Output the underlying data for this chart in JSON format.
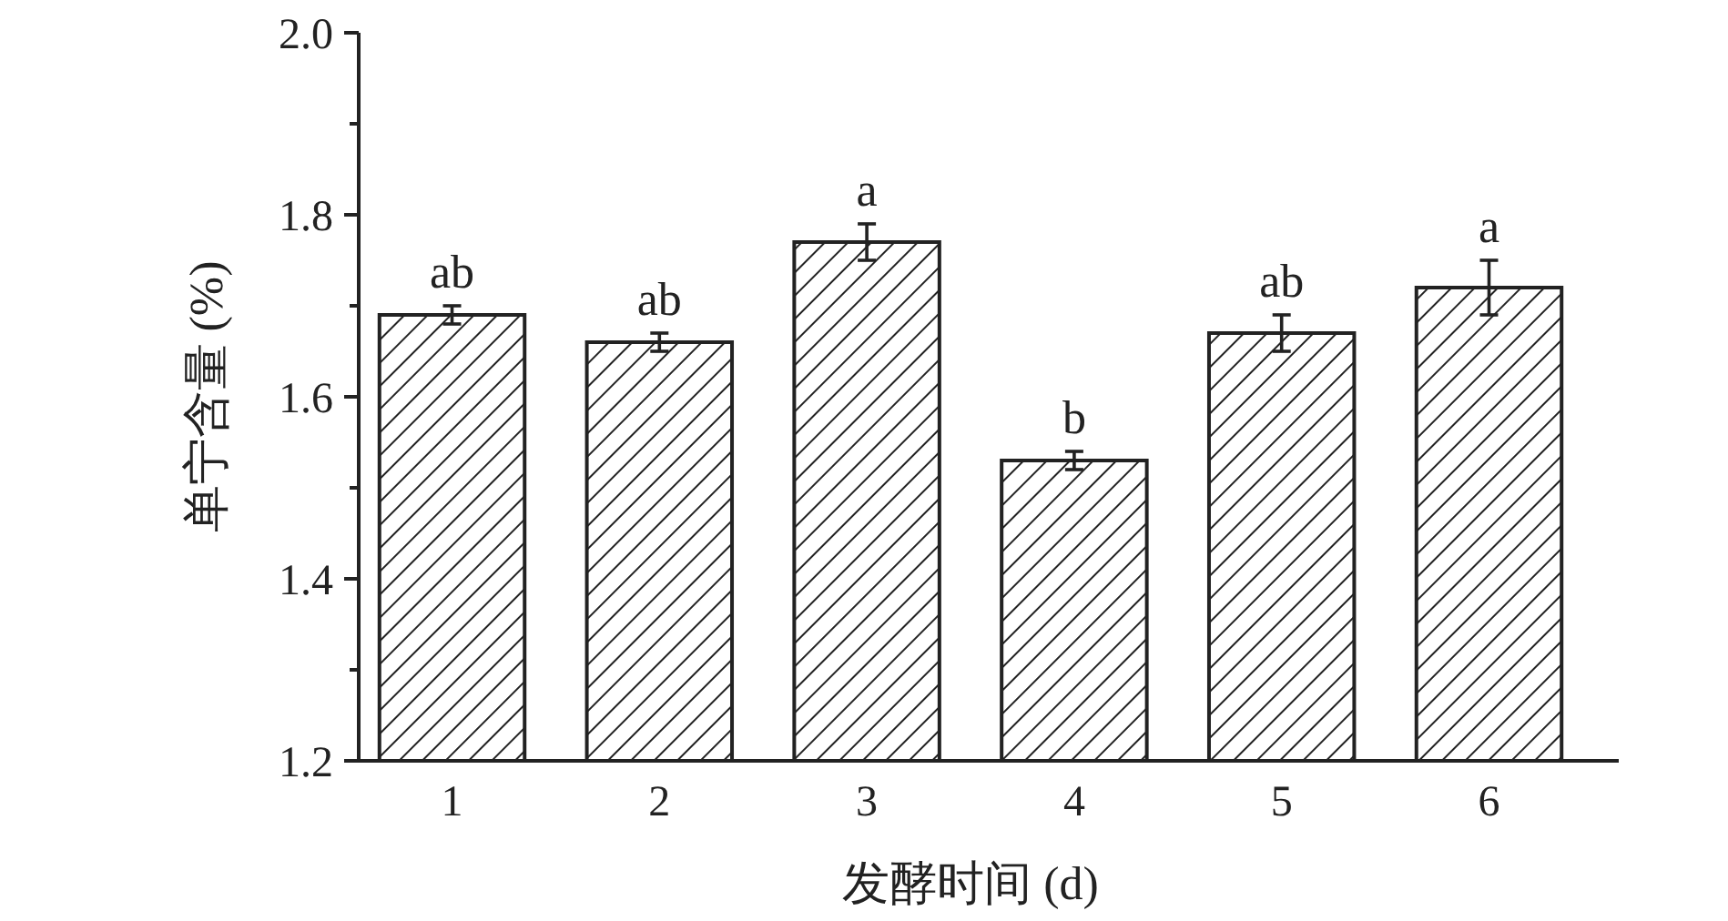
{
  "chart_data": {
    "type": "bar",
    "ylabel": "单宁含量 (%)",
    "xlabel": "发酵时间 (d)",
    "categories": [
      "1",
      "2",
      "3",
      "4",
      "5",
      "6"
    ],
    "values": [
      1.69,
      1.66,
      1.77,
      1.53,
      1.67,
      1.72
    ],
    "errors": [
      0.01,
      0.01,
      0.02,
      0.01,
      0.02,
      0.03
    ],
    "color": "#222222",
    "ylim": [
      1.2,
      2.0
    ],
    "yticks": [
      1.2,
      {
        "value": 1.3,
        "label": null
      },
      1.4,
      {
        "value": 1.5,
        "label": null
      },
      1.6,
      {
        "value": 1.7,
        "label": null
      },
      1.8,
      {
        "value": 1.9,
        "label": null
      },
      {
        "value": 2.0,
        "label": "2.0"
      }
    ],
    "annotations": [
      {
        "text": "ab",
        "x": "1",
        "y": 1.7
      },
      {
        "text": "ab",
        "x": "2",
        "y": 1.67
      },
      {
        "text": "a",
        "x": "3",
        "y": 1.79
      },
      {
        "text": "b",
        "x": "4",
        "y": 1.54
      },
      {
        "text": "ab",
        "x": "5",
        "y": 1.69
      },
      {
        "text": "a",
        "x": "6",
        "y": 1.75
      }
    ]
  }
}
